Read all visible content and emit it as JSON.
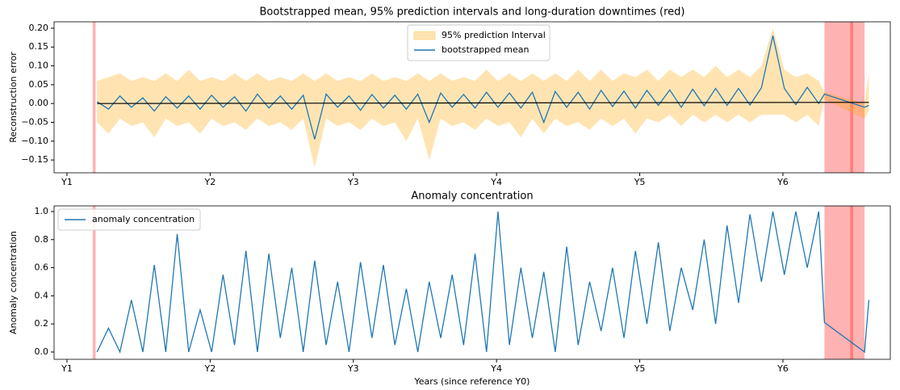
{
  "chart_data": [
    {
      "type": "interval-line",
      "title": "Bootstrapped mean, 95% prediction intervals and long-duration downtimes (red)",
      "ylabel": "Reconstruction error",
      "xlim": [
        0.91,
        6.75
      ],
      "xticks": [
        {
          "value": 1,
          "label": "Y1"
        },
        {
          "value": 2,
          "label": "Y2"
        },
        {
          "value": 3,
          "label": "Y3"
        },
        {
          "value": 4,
          "label": "Y4"
        },
        {
          "value": 5,
          "label": "Y5"
        },
        {
          "value": 6,
          "label": "Y6"
        }
      ],
      "ylim": [
        -0.184,
        0.217
      ],
      "yticks": [
        {
          "value": -0.15,
          "label": "−0.15"
        },
        {
          "value": -0.1,
          "label": "−0.10"
        },
        {
          "value": -0.05,
          "label": "−0.05"
        },
        {
          "value": 0,
          "label": "0.00"
        },
        {
          "value": 0.05,
          "label": "0.05"
        },
        {
          "value": 0.1,
          "label": "0.10"
        },
        {
          "value": 0.15,
          "label": "0.15"
        },
        {
          "value": 0.2,
          "label": "0.20"
        }
      ],
      "legend": "upper center",
      "downtimes": [
        [
          1.18,
          1.2
        ],
        [
          6.29,
          6.49
        ],
        [
          6.47,
          6.57
        ]
      ],
      "downtime_color": "#ff0000",
      "x": [
        1.21,
        1.29,
        1.37,
        1.45,
        1.53,
        1.61,
        1.69,
        1.77,
        1.85,
        1.93,
        2.01,
        2.09,
        2.17,
        2.25,
        2.33,
        2.41,
        2.49,
        2.57,
        2.65,
        2.73,
        2.81,
        2.89,
        2.97,
        3.05,
        3.13,
        3.21,
        3.29,
        3.37,
        3.45,
        3.53,
        3.61,
        3.69,
        3.77,
        3.85,
        3.93,
        4.01,
        4.09,
        4.17,
        4.25,
        4.33,
        4.41,
        4.49,
        4.57,
        4.65,
        4.73,
        4.81,
        4.89,
        4.97,
        5.05,
        5.13,
        5.21,
        5.29,
        5.37,
        5.45,
        5.53,
        5.61,
        5.69,
        5.77,
        5.85,
        5.93,
        6.01,
        6.09,
        6.17,
        6.25,
        6.29,
        6.57,
        6.6
      ],
      "interval": {
        "name": "95% prediction Interval",
        "color": "#ffa500",
        "upper": [
          0.06,
          0.07,
          0.08,
          0.06,
          0.07,
          0.06,
          0.08,
          0.06,
          0.09,
          0.06,
          0.07,
          0.06,
          0.08,
          0.06,
          0.08,
          0.06,
          0.07,
          0.06,
          0.08,
          0.06,
          0.08,
          0.06,
          0.07,
          0.06,
          0.08,
          0.06,
          0.07,
          0.06,
          0.08,
          0.06,
          0.08,
          0.06,
          0.07,
          0.06,
          0.09,
          0.06,
          0.08,
          0.06,
          0.08,
          0.06,
          0.08,
          0.06,
          0.09,
          0.06,
          0.09,
          0.06,
          0.08,
          0.07,
          0.09,
          0.06,
          0.09,
          0.07,
          0.09,
          0.07,
          0.1,
          0.07,
          0.09,
          0.07,
          0.1,
          0.2,
          0.09,
          0.07,
          0.08,
          0.06,
          0.03,
          0.0,
          0.08
        ],
        "lower": [
          -0.05,
          -0.08,
          -0.04,
          -0.06,
          -0.05,
          -0.09,
          -0.04,
          -0.06,
          -0.05,
          -0.08,
          -0.04,
          -0.06,
          -0.05,
          -0.07,
          -0.04,
          -0.06,
          -0.05,
          -0.07,
          -0.04,
          -0.17,
          -0.04,
          -0.06,
          -0.05,
          -0.07,
          -0.04,
          -0.06,
          -0.05,
          -0.1,
          -0.04,
          -0.15,
          -0.04,
          -0.06,
          -0.05,
          -0.07,
          -0.04,
          -0.06,
          -0.05,
          -0.09,
          -0.04,
          -0.08,
          -0.04,
          -0.06,
          -0.05,
          -0.07,
          -0.04,
          -0.06,
          -0.04,
          -0.08,
          -0.04,
          -0.05,
          -0.03,
          -0.06,
          -0.03,
          -0.05,
          -0.03,
          -0.05,
          -0.03,
          -0.05,
          -0.03,
          -0.03,
          -0.03,
          -0.05,
          -0.03,
          -0.06,
          0.01,
          -0.04,
          -0.02
        ]
      },
      "series": [
        {
          "name": "bootstrapped mean",
          "color": "#1f77b4",
          "values": [
            0.005,
            -0.015,
            0.02,
            -0.01,
            0.015,
            -0.02,
            0.018,
            -0.012,
            0.02,
            -0.015,
            0.022,
            -0.01,
            0.018,
            -0.02,
            0.025,
            -0.012,
            0.02,
            -0.015,
            0.022,
            -0.095,
            0.025,
            -0.01,
            0.02,
            -0.018,
            0.024,
            -0.012,
            0.022,
            -0.015,
            0.025,
            -0.05,
            0.028,
            -0.01,
            0.024,
            -0.012,
            0.03,
            -0.01,
            0.028,
            -0.012,
            0.03,
            -0.05,
            0.032,
            -0.01,
            0.03,
            -0.015,
            0.035,
            -0.008,
            0.033,
            -0.012,
            0.035,
            -0.005,
            0.036,
            -0.01,
            0.038,
            -0.006,
            0.04,
            -0.005,
            0.04,
            -0.004,
            0.042,
            0.18,
            0.04,
            -0.003,
            0.043,
            0.0,
            0.025,
            -0.01,
            -0.005
          ]
        }
      ],
      "trend": {
        "color": "#000000",
        "x": [
          1.21,
          6.29,
          6.6
        ],
        "values": [
          0.0,
          0.003,
          0.003
        ]
      }
    },
    {
      "type": "line",
      "title": "Anomaly concentration",
      "ylabel": "Anomaly concentration",
      "xlabel": "Years (since reference Y0)",
      "xlim": [
        0.91,
        6.75
      ],
      "xticks": [
        {
          "value": 1,
          "label": "Y1"
        },
        {
          "value": 2,
          "label": "Y2"
        },
        {
          "value": 3,
          "label": "Y3"
        },
        {
          "value": 4,
          "label": "Y4"
        },
        {
          "value": 5,
          "label": "Y5"
        },
        {
          "value": 6,
          "label": "Y6"
        }
      ],
      "ylim": [
        -0.052,
        1.04
      ],
      "yticks": [
        {
          "value": 0,
          "label": "0.0"
        },
        {
          "value": 0.2,
          "label": "0.2"
        },
        {
          "value": 0.4,
          "label": "0.4"
        },
        {
          "value": 0.6,
          "label": "0.6"
        },
        {
          "value": 0.8,
          "label": "0.8"
        },
        {
          "value": 1,
          "label": "1.0"
        }
      ],
      "legend": "upper left",
      "downtimes": [
        [
          1.18,
          1.2
        ],
        [
          6.29,
          6.49
        ],
        [
          6.47,
          6.57
        ]
      ],
      "downtime_color": "#ff0000",
      "x": [
        1.21,
        1.29,
        1.37,
        1.45,
        1.53,
        1.61,
        1.69,
        1.77,
        1.85,
        1.93,
        2.01,
        2.09,
        2.17,
        2.25,
        2.33,
        2.41,
        2.49,
        2.57,
        2.65,
        2.73,
        2.81,
        2.89,
        2.97,
        3.05,
        3.13,
        3.21,
        3.29,
        3.37,
        3.45,
        3.53,
        3.61,
        3.69,
        3.77,
        3.85,
        3.93,
        4.01,
        4.09,
        4.17,
        4.25,
        4.33,
        4.41,
        4.49,
        4.57,
        4.65,
        4.73,
        4.81,
        4.89,
        4.97,
        5.05,
        5.13,
        5.21,
        5.29,
        5.37,
        5.45,
        5.53,
        5.61,
        5.69,
        5.77,
        5.85,
        5.93,
        6.01,
        6.09,
        6.17,
        6.25,
        6.29,
        6.57,
        6.6
      ],
      "series": [
        {
          "name": "anomaly concentration",
          "color": "#1f77b4",
          "values": [
            0.0,
            0.17,
            0.0,
            0.37,
            0.0,
            0.62,
            0.0,
            0.84,
            0.0,
            0.3,
            0.0,
            0.55,
            0.05,
            0.72,
            0.0,
            0.7,
            0.1,
            0.6,
            0.0,
            0.65,
            0.05,
            0.5,
            0.0,
            0.64,
            0.1,
            0.62,
            0.05,
            0.45,
            0.0,
            0.5,
            0.1,
            0.55,
            0.05,
            0.7,
            0.0,
            1.0,
            0.05,
            0.6,
            0.1,
            0.57,
            0.0,
            0.75,
            0.05,
            0.5,
            0.15,
            0.6,
            0.1,
            0.72,
            0.2,
            0.78,
            0.15,
            0.6,
            0.3,
            0.8,
            0.2,
            0.9,
            0.35,
            0.98,
            0.5,
            1.0,
            0.55,
            1.0,
            0.6,
            1.0,
            0.21,
            0.0,
            0.37
          ]
        }
      ]
    }
  ]
}
